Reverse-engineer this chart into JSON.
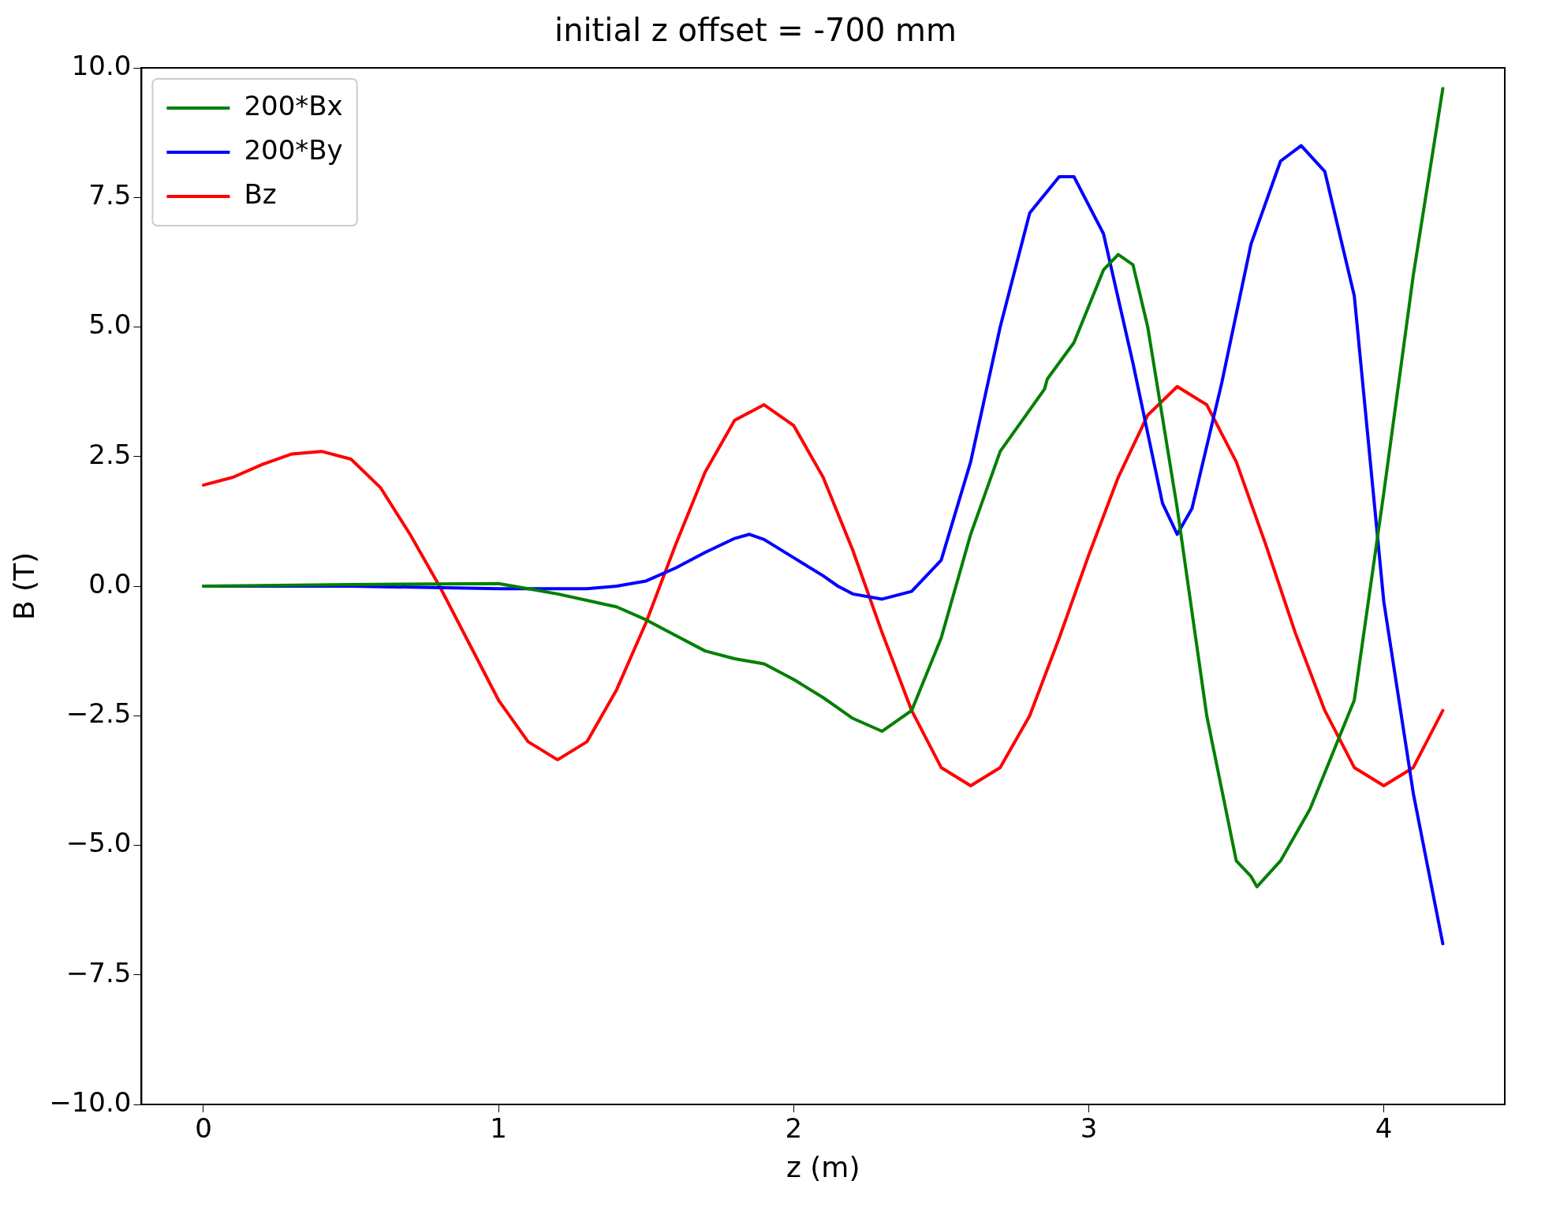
{
  "chart_data": {
    "type": "line",
    "title": "initial z offset = -700 mm",
    "xlabel": "z (m)",
    "ylabel": "B (T)",
    "xlim": [
      -0.21,
      4.41
    ],
    "xticks": [
      0,
      1,
      2,
      3,
      4
    ],
    "ylim": [
      -10,
      10
    ],
    "yticks": [
      {
        "value": -10,
        "label": "−10.0"
      },
      {
        "value": -7.5,
        "label": "−7.5"
      },
      {
        "value": -5,
        "label": "−5.0"
      },
      {
        "value": -2.5,
        "label": "−2.5"
      },
      {
        "value": 0,
        "label": "0.0"
      },
      {
        "value": 2.5,
        "label": "2.5"
      },
      {
        "value": 5,
        "label": "5.0"
      },
      {
        "value": 7.5,
        "label": "7.5"
      },
      {
        "value": 10,
        "label": "10.0"
      }
    ],
    "grid": false,
    "legend": "top left",
    "line_style": "solid",
    "marker": "none",
    "series": [
      {
        "name": "200*Bx",
        "color": "#008000",
        "x": [
          0,
          0.5,
          1.0,
          1.1,
          1.2,
          1.4,
          1.5,
          1.6,
          1.7,
          1.8,
          1.9,
          2.0,
          2.1,
          2.15,
          2.2,
          2.3,
          2.4,
          2.5,
          2.6,
          2.7,
          2.8,
          2.85,
          2.86,
          2.95,
          3.05,
          3.1,
          3.15,
          3.2,
          3.3,
          3.4,
          3.5,
          3.55,
          3.57,
          3.65,
          3.75,
          3.9,
          4.0,
          4.1,
          4.2
        ],
        "values": [
          0,
          0.03,
          0.05,
          -0.05,
          -0.15,
          -0.4,
          -0.65,
          -0.95,
          -1.25,
          -1.4,
          -1.5,
          -1.8,
          -2.15,
          -2.35,
          -2.55,
          -2.8,
          -2.4,
          -1.0,
          1.0,
          2.6,
          3.4,
          3.8,
          4.0,
          4.7,
          6.1,
          6.4,
          6.2,
          5.0,
          1.5,
          -2.5,
          -5.3,
          -5.6,
          -5.8,
          -5.3,
          -4.3,
          -2.2,
          1.8,
          6.0,
          9.6
        ]
      },
      {
        "name": "200*By",
        "color": "#0000ff",
        "x": [
          0,
          0.5,
          1.0,
          1.3,
          1.4,
          1.5,
          1.6,
          1.7,
          1.8,
          1.85,
          1.9,
          2.0,
          2.1,
          2.15,
          2.2,
          2.3,
          2.4,
          2.5,
          2.6,
          2.7,
          2.8,
          2.9,
          2.95,
          3.05,
          3.15,
          3.25,
          3.3,
          3.35,
          3.45,
          3.55,
          3.65,
          3.72,
          3.8,
          3.9,
          4.0,
          4.1,
          4.2
        ],
        "values": [
          0,
          0,
          -0.05,
          -0.05,
          0,
          0.1,
          0.35,
          0.65,
          0.92,
          1.0,
          0.9,
          0.55,
          0.2,
          0,
          -0.15,
          -0.25,
          -0.1,
          0.5,
          2.4,
          5.0,
          7.2,
          7.9,
          7.9,
          6.8,
          4.3,
          1.6,
          1.0,
          1.5,
          3.9,
          6.6,
          8.2,
          8.5,
          8.0,
          5.6,
          -0.3,
          -4.0,
          -6.9
        ]
      },
      {
        "name": "Bz",
        "color": "#ff0000",
        "x": [
          0,
          0.1,
          0.2,
          0.3,
          0.4,
          0.5,
          0.6,
          0.7,
          0.8,
          0.9,
          1.0,
          1.1,
          1.2,
          1.3,
          1.4,
          1.5,
          1.6,
          1.7,
          1.8,
          1.9,
          2.0,
          2.1,
          2.2,
          2.3,
          2.4,
          2.5,
          2.6,
          2.7,
          2.8,
          2.9,
          3.0,
          3.1,
          3.2,
          3.3,
          3.4,
          3.5,
          3.6,
          3.7,
          3.8,
          3.9,
          4.0,
          4.1,
          4.2
        ],
        "values": [
          1.95,
          2.1,
          2.35,
          2.55,
          2.6,
          2.45,
          1.9,
          1.0,
          0.0,
          -1.1,
          -2.2,
          -3.0,
          -3.35,
          -3.0,
          -2.0,
          -0.7,
          0.8,
          2.2,
          3.2,
          3.5,
          3.1,
          2.1,
          0.7,
          -0.9,
          -2.4,
          -3.5,
          -3.85,
          -3.5,
          -2.5,
          -1.0,
          0.6,
          2.1,
          3.3,
          3.85,
          3.5,
          2.4,
          0.8,
          -0.9,
          -2.4,
          -3.5,
          -3.85,
          -3.5,
          -2.4
        ]
      }
    ]
  }
}
